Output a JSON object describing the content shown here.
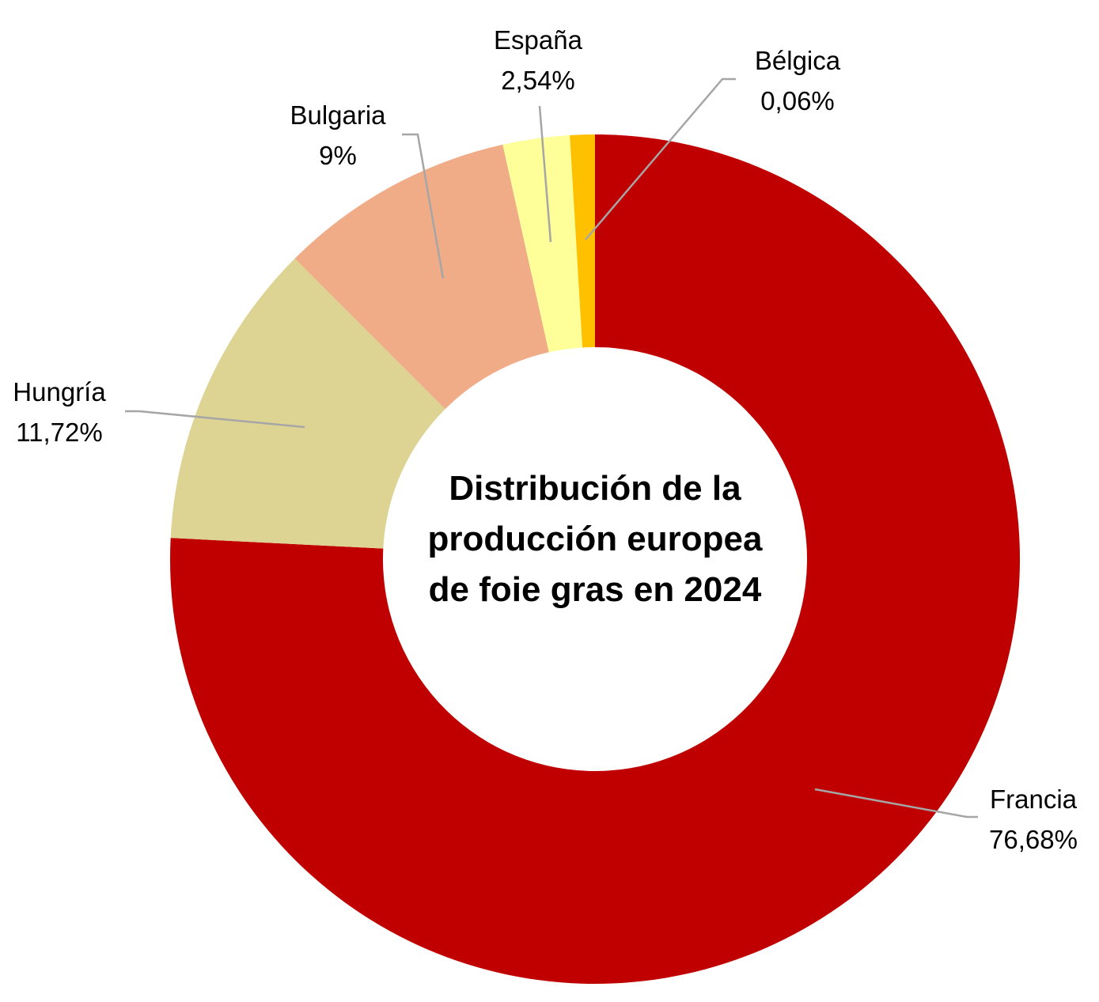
{
  "chart_data": {
    "type": "pie",
    "donut": true,
    "title_lines": [
      "Distribución de la",
      "producción europea",
      "de foie gras en 2024"
    ],
    "start_angle_deg": 0,
    "direction": "clockwise",
    "slices": [
      {
        "name": "Francia",
        "value": 76.68,
        "label": "76,68%",
        "color": "#c00000"
      },
      {
        "name": "Hungría",
        "value": 11.72,
        "label": "11,72%",
        "color": "#ddd393"
      },
      {
        "name": "Bulgaria",
        "value": 9,
        "label": "9%",
        "color": "#f0ab87"
      },
      {
        "name": "España",
        "value": 2.54,
        "label": "2,54%",
        "color": "#ffff99"
      },
      {
        "name": "Bélgica",
        "value": 0.06,
        "label": "0,06%",
        "color": "#ffc000"
      }
    ],
    "legend": "none"
  }
}
